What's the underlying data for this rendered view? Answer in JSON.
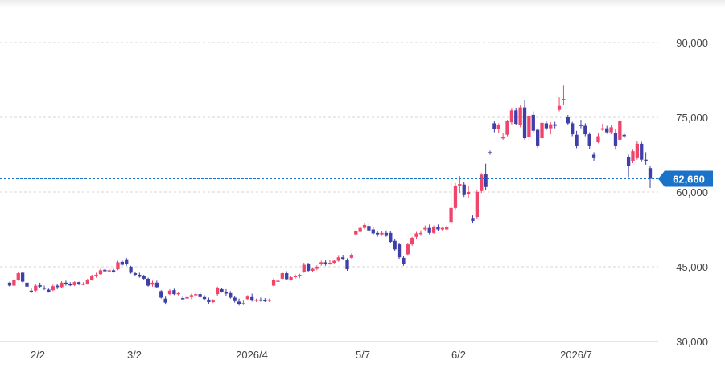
{
  "chart_data": {
    "type": "candlestick",
    "x_tick_labels": [
      "2/2",
      "3/2",
      "2026/4",
      "5/7",
      "6/2",
      "2026/7"
    ],
    "y_tick_labels": [
      "90,000",
      "75,000",
      "60,000",
      "45,000",
      "30,000"
    ],
    "y_ticks": [
      90000,
      75000,
      60000,
      45000,
      30000
    ],
    "ylim": [
      30000,
      94000
    ],
    "grid": true,
    "current_price_label": "62,660",
    "current_price": 62660,
    "colors": {
      "up": "#f0456a",
      "down": "#3f3fa8",
      "current": "#1a73c8",
      "grid": "#d6d6d6"
    },
    "candles": [
      [
        41800,
        42000,
        41000,
        41200
      ],
      [
        41200,
        42600,
        41000,
        42400
      ],
      [
        42400,
        44000,
        42200,
        43700
      ],
      [
        43800,
        44000,
        41800,
        42000
      ],
      [
        41800,
        42000,
        40500,
        41000
      ],
      [
        40200,
        40800,
        39700,
        40000
      ],
      [
        40200,
        41600,
        40000,
        41200
      ],
      [
        41300,
        41800,
        40800,
        41000
      ],
      [
        40800,
        41200,
        40300,
        40600
      ],
      [
        40400,
        40600,
        39800,
        40000
      ],
      [
        40300,
        41400,
        40100,
        41100
      ],
      [
        41200,
        41600,
        40500,
        40900
      ],
      [
        40900,
        42100,
        40700,
        41800
      ],
      [
        41800,
        42200,
        41200,
        41500
      ],
      [
        41500,
        41900,
        41100,
        41300
      ],
      [
        41300,
        42100,
        41100,
        41900
      ],
      [
        41900,
        42000,
        41300,
        41500
      ],
      [
        41500,
        41900,
        41300,
        41600
      ],
      [
        41600,
        42600,
        41400,
        42300
      ],
      [
        42400,
        43400,
        42200,
        43100
      ],
      [
        43200,
        43800,
        42800,
        43400
      ],
      [
        43500,
        44600,
        43400,
        44300
      ],
      [
        44400,
        44700,
        43900,
        44100
      ],
      [
        44100,
        44600,
        43800,
        44300
      ],
      [
        44300,
        44600,
        43800,
        44000
      ],
      [
        44500,
        46200,
        44300,
        45900
      ],
      [
        46000,
        46400,
        45200,
        45400
      ],
      [
        46500,
        46800,
        45200,
        45600
      ],
      [
        45000,
        45200,
        43600,
        43800
      ],
      [
        43700,
        44000,
        43200,
        43400
      ],
      [
        43400,
        43800,
        42800,
        43000
      ],
      [
        43200,
        43400,
        42400,
        42600
      ],
      [
        42600,
        42800,
        41000,
        41200
      ],
      [
        41400,
        42200,
        41000,
        41800
      ],
      [
        41800,
        42200,
        40700,
        40900
      ],
      [
        40100,
        40300,
        38600,
        38800
      ],
      [
        38600,
        39000,
        37400,
        37800
      ],
      [
        39500,
        40500,
        39300,
        40200
      ],
      [
        40300,
        40600,
        39300,
        39500
      ],
      [
        39500,
        40000,
        39200,
        39700
      ],
      [
        38700,
        39000,
        38400,
        38600
      ],
      [
        38600,
        39200,
        38200,
        38900
      ],
      [
        38900,
        39600,
        38500,
        39300
      ],
      [
        39300,
        39800,
        38900,
        39500
      ],
      [
        39500,
        39900,
        38700,
        38900
      ],
      [
        38900,
        39300,
        38200,
        38500
      ],
      [
        38400,
        38800,
        37500,
        37900
      ],
      [
        37900,
        38500,
        37700,
        38200
      ],
      [
        39500,
        41000,
        39200,
        40700
      ],
      [
        40500,
        40800,
        39800,
        40000
      ],
      [
        40000,
        40500,
        39200,
        39600
      ],
      [
        39700,
        40100,
        38600,
        38800
      ],
      [
        38800,
        39100,
        37800,
        38100
      ],
      [
        38000,
        38600,
        37200,
        37500
      ],
      [
        37500,
        38200,
        37300,
        37700
      ],
      [
        38500,
        39300,
        38200,
        39000
      ],
      [
        38900,
        39600,
        38000,
        38200
      ],
      [
        38200,
        38600,
        37900,
        38400
      ],
      [
        38400,
        38800,
        38000,
        38200
      ],
      [
        38300,
        38700,
        37900,
        38100
      ],
      [
        38200,
        38600,
        37900,
        38400
      ],
      [
        41200,
        42700,
        41000,
        42400
      ],
      [
        42000,
        42600,
        41500,
        42200
      ],
      [
        42600,
        44000,
        42400,
        43700
      ],
      [
        43700,
        44100,
        42300,
        42500
      ],
      [
        42400,
        43200,
        42200,
        42900
      ],
      [
        42900,
        43500,
        42600,
        43200
      ],
      [
        43200,
        43600,
        42700,
        43400
      ],
      [
        44000,
        45800,
        43800,
        45400
      ],
      [
        45500,
        45800,
        43900,
        44200
      ],
      [
        44200,
        44900,
        44000,
        44600
      ],
      [
        44600,
        45300,
        44300,
        45000
      ],
      [
        45500,
        46200,
        45200,
        45900
      ],
      [
        45900,
        46300,
        45200,
        45500
      ],
      [
        45600,
        46300,
        45400,
        45800
      ],
      [
        45800,
        46400,
        45600,
        46200
      ],
      [
        46200,
        47200,
        46000,
        46900
      ],
      [
        46900,
        47300,
        46400,
        46600
      ],
      [
        46400,
        46700,
        44200,
        44500
      ],
      [
        46800,
        47700,
        46600,
        47400
      ],
      [
        51500,
        52400,
        51200,
        52100
      ],
      [
        52000,
        53200,
        51800,
        52800
      ],
      [
        52800,
        53700,
        52500,
        53400
      ],
      [
        53200,
        53700,
        52000,
        52300
      ],
      [
        52500,
        53000,
        51400,
        51700
      ],
      [
        51800,
        52200,
        51000,
        51500
      ],
      [
        51500,
        52200,
        51200,
        51800
      ],
      [
        51800,
        52300,
        51000,
        51200
      ],
      [
        51800,
        52200,
        49800,
        50000
      ],
      [
        50200,
        50500,
        48200,
        48500
      ],
      [
        49500,
        49800,
        46600,
        46900
      ],
      [
        46800,
        47100,
        45200,
        45600
      ],
      [
        47500,
        49800,
        47200,
        49500
      ],
      [
        49500,
        51000,
        49200,
        50800
      ],
      [
        51000,
        52000,
        50600,
        51700
      ],
      [
        51700,
        52300,
        51200,
        51800
      ],
      [
        52500,
        53300,
        52200,
        52800
      ],
      [
        52800,
        53500,
        51500,
        51800
      ],
      [
        51800,
        53300,
        51600,
        53000
      ],
      [
        53000,
        53500,
        52200,
        52500
      ],
      [
        52500,
        53000,
        52200,
        52800
      ],
      [
        52500,
        53300,
        52300,
        53000
      ],
      [
        54000,
        62000,
        53500,
        56800
      ],
      [
        56800,
        61800,
        56500,
        61300
      ],
      [
        61300,
        63200,
        59800,
        61600
      ],
      [
        61500,
        62000,
        59000,
        59400
      ],
      [
        59500,
        61300,
        58800,
        60000
      ],
      [
        54800,
        55300,
        53800,
        54200
      ],
      [
        55000,
        60400,
        54600,
        60000
      ],
      [
        60200,
        63800,
        59800,
        63500
      ],
      [
        63600,
        65700,
        60400,
        61000
      ],
      [
        68000,
        68300,
        67500,
        67800
      ],
      [
        73800,
        74200,
        72000,
        72600
      ],
      [
        72600,
        73800,
        71800,
        73400
      ],
      [
        71000,
        71800,
        70500,
        71000
      ],
      [
        71500,
        74500,
        71200,
        74200
      ],
      [
        74000,
        76800,
        73600,
        76400
      ],
      [
        76400,
        76800,
        73400,
        73700
      ],
      [
        73400,
        77400,
        73000,
        77000
      ],
      [
        77000,
        78400,
        70500,
        70800
      ],
      [
        71000,
        75600,
        70300,
        75300
      ],
      [
        75500,
        76200,
        72000,
        72300
      ],
      [
        72500,
        72800,
        68800,
        69200
      ],
      [
        70800,
        74200,
        70500,
        73900
      ],
      [
        73800,
        74300,
        72400,
        72800
      ],
      [
        72800,
        74000,
        71600,
        73600
      ],
      [
        73600,
        74100,
        72800,
        73300
      ],
      [
        76500,
        79000,
        76200,
        77300
      ],
      [
        78400,
        81400,
        77400,
        78700
      ],
      [
        75000,
        75500,
        73400,
        73800
      ],
      [
        73800,
        74100,
        71200,
        71600
      ],
      [
        71500,
        72300,
        68800,
        69200
      ],
      [
        73500,
        74500,
        72800,
        73300
      ],
      [
        73300,
        73800,
        71200,
        71600
      ],
      [
        71600,
        72000,
        68700,
        69200
      ],
      [
        67500,
        68000,
        66300,
        66800
      ],
      [
        70000,
        71800,
        69800,
        71200
      ],
      [
        72500,
        73700,
        72300,
        72800
      ],
      [
        72800,
        73300,
        71700,
        72000
      ],
      [
        72000,
        73400,
        71600,
        73000
      ],
      [
        71800,
        72600,
        68500,
        69200
      ],
      [
        70500,
        74500,
        70200,
        74200
      ],
      [
        71500,
        71900,
        70800,
        71200
      ],
      [
        67000,
        67500,
        63000,
        65200
      ],
      [
        66200,
        68500,
        65800,
        68200
      ],
      [
        66800,
        70200,
        66500,
        69700
      ],
      [
        69700,
        70100,
        66000,
        66500
      ],
      [
        66500,
        68000,
        65500,
        66200
      ],
      [
        64800,
        65200,
        60800,
        62660
      ]
    ]
  }
}
